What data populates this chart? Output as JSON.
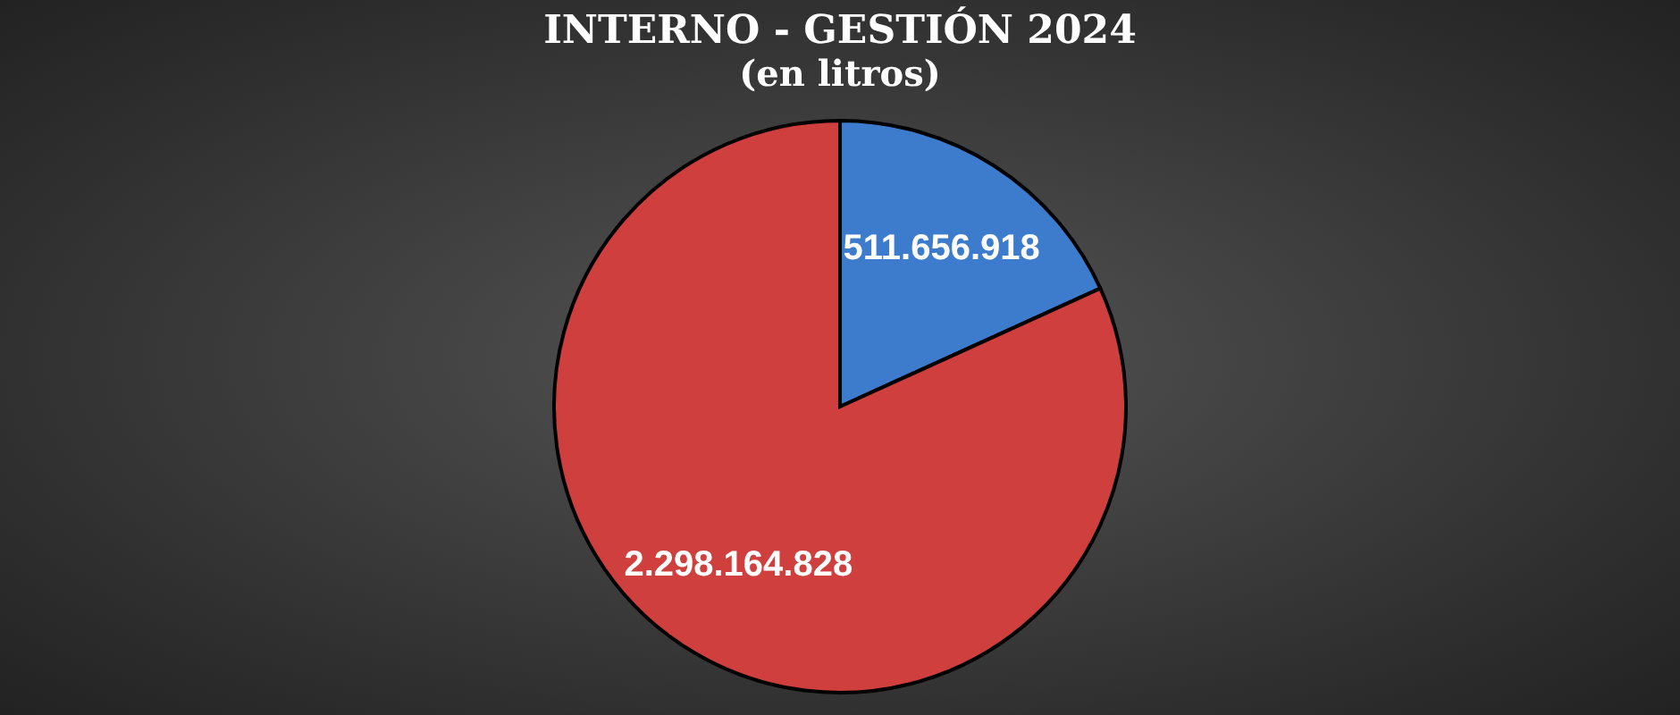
{
  "chart_data": {
    "type": "pie",
    "title": "INTERNO - GESTIÓN 2024",
    "subtitle": "(en litros)",
    "categories": [
      null,
      null
    ],
    "values": [
      511656918,
      2298164828
    ],
    "colors": [
      "#3d7ccc",
      "#cf3f3d"
    ],
    "value_labels": [
      "511.656.918",
      "2.298.164.828"
    ],
    "legend": false
  }
}
